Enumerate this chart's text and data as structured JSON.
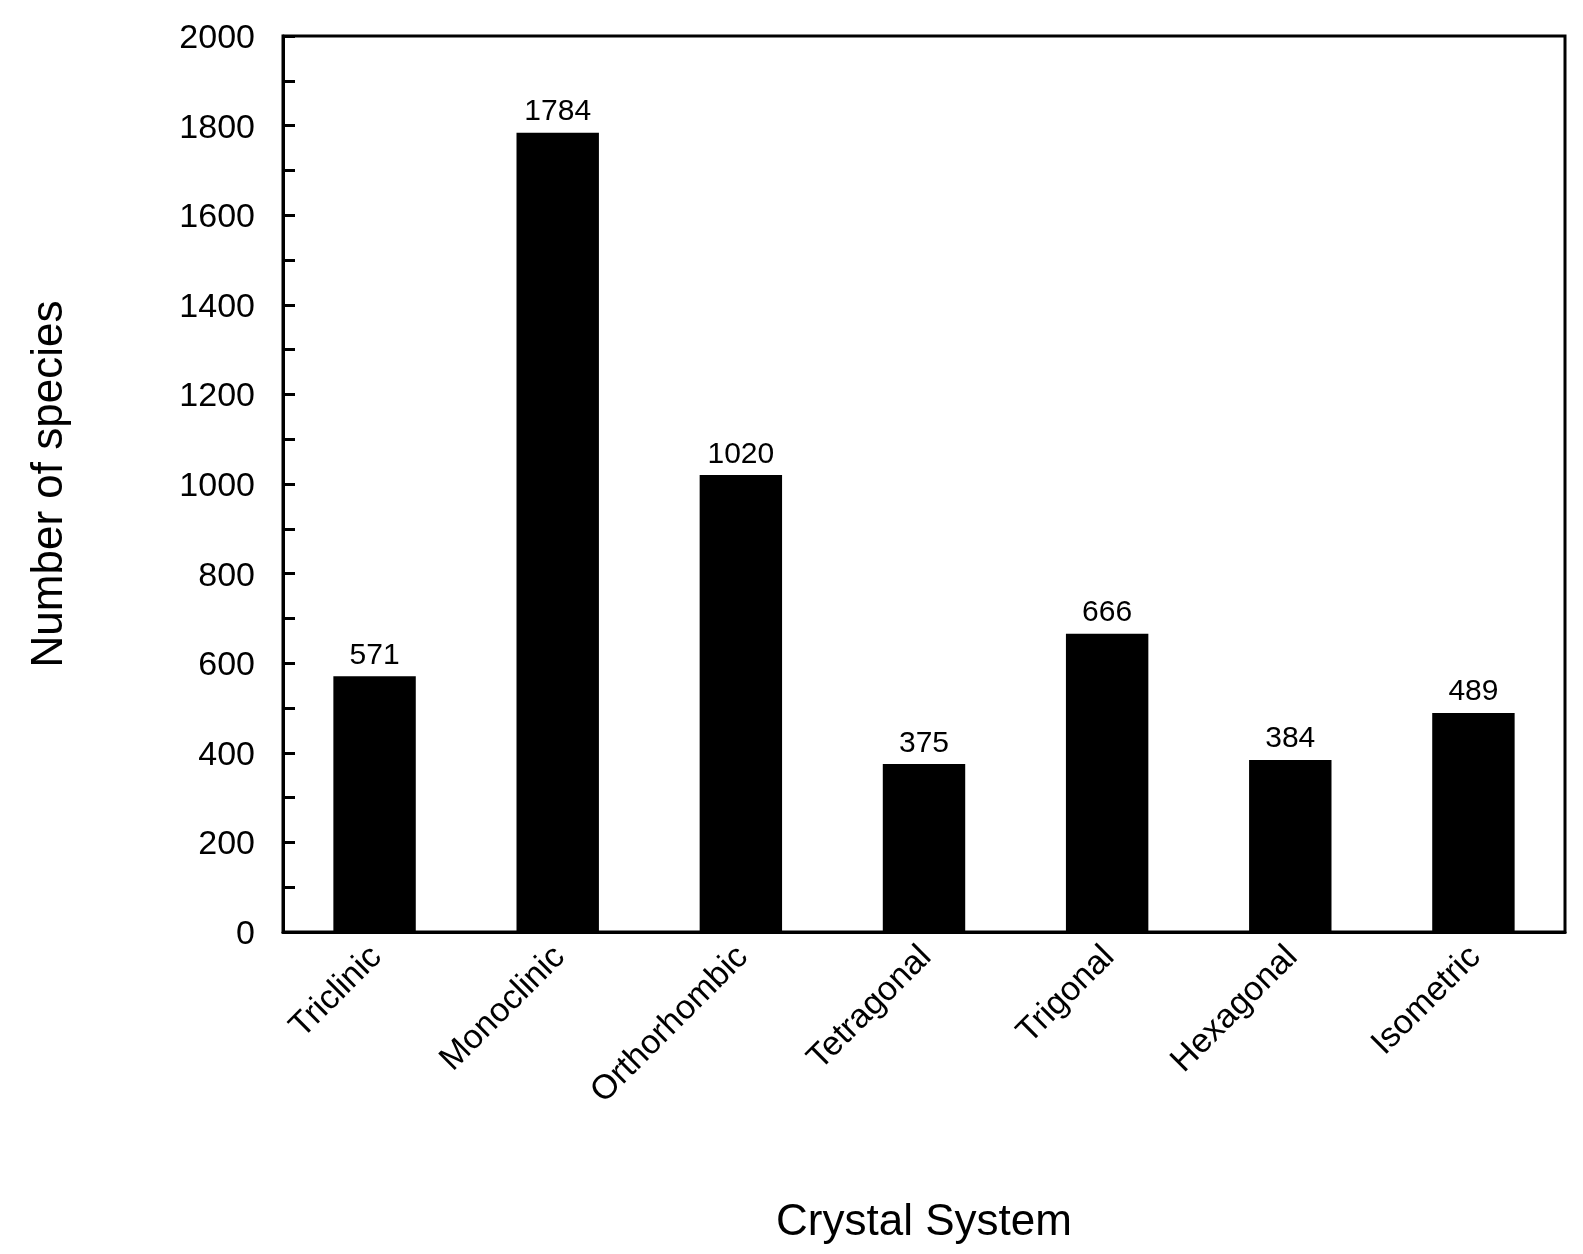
{
  "chart_data": {
    "type": "bar",
    "xlabel": "Crystal System",
    "ylabel": "Number of species",
    "categories": [
      "Triclinic",
      "Monoclinic",
      "Orthorhombic",
      "Tetragonal",
      "Trigonal",
      "Hexagonal",
      "Isometric"
    ],
    "values": [
      571,
      1784,
      1020,
      375,
      666,
      384,
      489
    ],
    "color": "#000000",
    "ylim": [
      0,
      2000
    ],
    "yticks": [
      0,
      {
        "value": 100,
        "label": null
      },
      200,
      {
        "value": 300,
        "label": null
      },
      400,
      {
        "value": 500,
        "label": null
      },
      600,
      {
        "value": 700,
        "label": null
      },
      800,
      {
        "value": 900,
        "label": null
      },
      1000,
      {
        "value": 1100,
        "label": null
      },
      1200,
      {
        "value": 1300,
        "label": null
      },
      1400,
      {
        "value": 1500,
        "label": null
      },
      1600,
      {
        "value": 1700,
        "label": null
      },
      1800,
      {
        "value": 1900,
        "label": null
      },
      2000
    ],
    "data_labels": true,
    "grid": false
  }
}
